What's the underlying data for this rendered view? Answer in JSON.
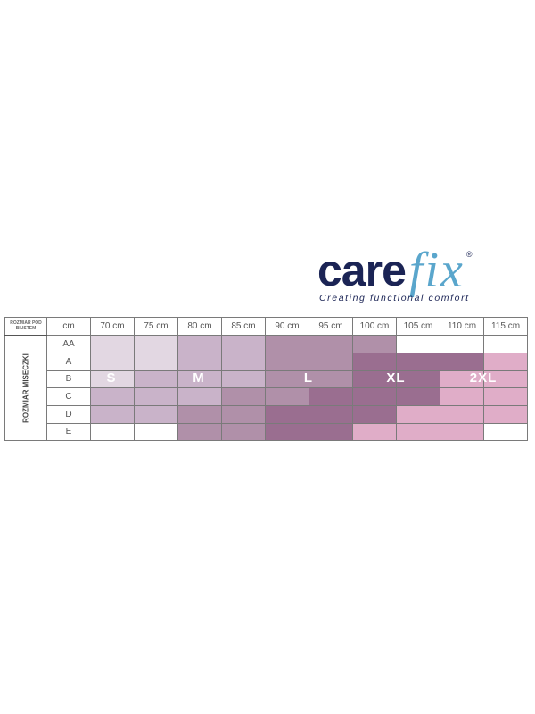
{
  "logo": {
    "part1": "care",
    "part2": "fix",
    "registered": "®",
    "tagline": "Creating functional comfort"
  },
  "table": {
    "corner_label": "ROZMIAR POD BIUSTEM",
    "row_header_label": "ROZMIAR MISECZKI",
    "unit_label": "cm",
    "columns": [
      "70 cm",
      "75 cm",
      "80 cm",
      "85 cm",
      "90 cm",
      "95 cm",
      "100 cm",
      "105 cm",
      "110 cm",
      "115 cm"
    ],
    "rows": [
      {
        "cup": "AA",
        "sizes": [
          "S",
          "S",
          "M",
          "M",
          "L",
          "L",
          "L",
          "",
          "",
          ""
        ]
      },
      {
        "cup": "A",
        "sizes": [
          "S",
          "S",
          "M",
          "M",
          "L",
          "L",
          "XL",
          "XL",
          "XL",
          "2XL"
        ]
      },
      {
        "cup": "B",
        "sizes": [
          "S",
          "M",
          "M",
          "M",
          "L",
          "L",
          "XL",
          "XL",
          "2XL",
          "2XL"
        ]
      },
      {
        "cup": "C",
        "sizes": [
          "M",
          "M",
          "M",
          "L",
          "L",
          "XL",
          "XL",
          "XL",
          "2XL",
          "2XL"
        ]
      },
      {
        "cup": "D",
        "sizes": [
          "M",
          "M",
          "L",
          "L",
          "XL",
          "XL",
          "XL",
          "2XL",
          "2XL",
          "2XL"
        ]
      },
      {
        "cup": "E",
        "sizes": [
          "",
          "",
          "L",
          "L",
          "XL",
          "XL",
          "2XL",
          "2XL",
          "2XL",
          ""
        ]
      }
    ],
    "size_labels": [
      "S",
      "M",
      "L",
      "XL",
      "2XL"
    ],
    "size_colors": {
      "S": "#e2d7e2",
      "M": "#c9b3c9",
      "L": "#b090a9",
      "XL": "#9a6e90",
      "2XL": "#e0adc8",
      "": "#ffffff"
    }
  }
}
